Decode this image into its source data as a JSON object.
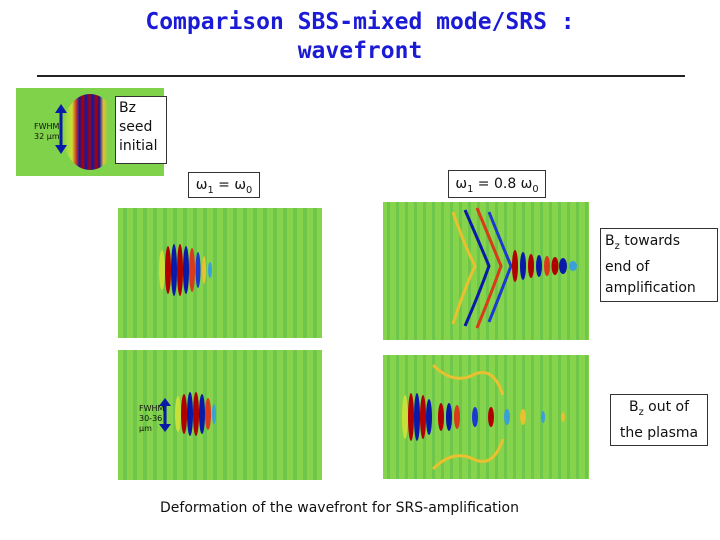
{
  "title": {
    "line1": "Comparison SBS-mixed mode/SRS :",
    "line2": "wavefront"
  },
  "seed_label": {
    "line1": "Bz",
    "line2": "seed",
    "line3": "initial"
  },
  "seed_fwhm": {
    "line1": "FWHM",
    "line2": "32 µm"
  },
  "omega_left": {
    "prefix": "ω",
    "sub1": "1",
    "mid": " =  ω",
    "sub2": "0"
  },
  "omega_right": {
    "prefix": "ω",
    "sub1": "1",
    "mid": " = 0.8 ω",
    "sub2": "0"
  },
  "end_label": {
    "b": "B",
    "sub": "z",
    "line1_rest": " towards",
    "line2": "end of",
    "line3": "amplification"
  },
  "out_label": {
    "b": "B",
    "sub": "z",
    "line1_rest": " out of",
    "line2": "the plasma"
  },
  "out_fwhm": {
    "line1": "FWHM",
    "line2": "30-36",
    "line3": "µm"
  },
  "caption": "Deformation of the wavefront for SRS-amplification",
  "colors": {
    "title": "#1b1bd6",
    "field_bg": "#7fd24a",
    "positive": "#b00000",
    "negative": "#0a1aa8"
  }
}
